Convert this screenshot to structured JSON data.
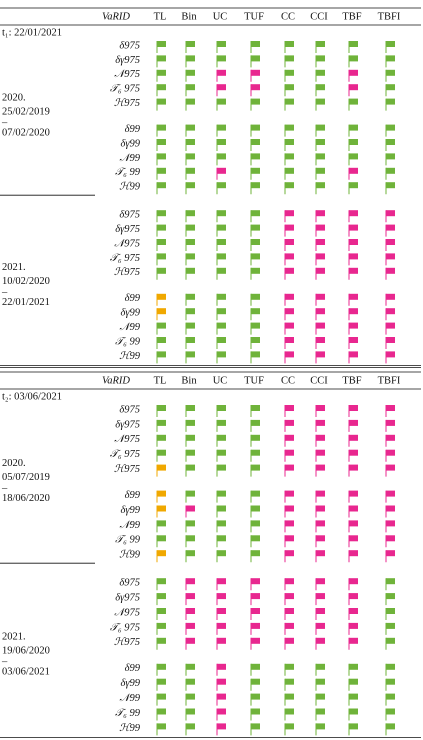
{
  "header": {
    "id_label": "VaRID",
    "columns": [
      "TL",
      "Bin",
      "UC",
      "TUF",
      "CC",
      "CCI",
      "TBF",
      "TBFI"
    ]
  },
  "sections": [
    {
      "date_label": "t₁: 22/01/2021",
      "periods": [
        {
          "year": "2020.",
          "start": "25/02/2019",
          "dash": "–",
          "end": "07/02/2020",
          "groups": [
            [
              {
                "label": "δ975",
                "flags": [
                  "#6fb33a",
                  "#6fb33a",
                  "#6fb33a",
                  "#6fb33a",
                  "#6fb33a",
                  "#6fb33a",
                  "#6fb33a",
                  "#6fb33a"
                ]
              },
              {
                "label": "δγ975",
                "flags": [
                  "#6fb33a",
                  "#6fb33a",
                  "#6fb33a",
                  "#6fb33a",
                  "#6fb33a",
                  "#6fb33a",
                  "#6fb33a",
                  "#6fb33a"
                ]
              },
              {
                "label": "𝒩975",
                "flags": [
                  "#6fb33a",
                  "#6fb33a",
                  "#e8278f",
                  "#e8278f",
                  "#6fb33a",
                  "#6fb33a",
                  "#e8278f",
                  "#6fb33a"
                ]
              },
              {
                "label": "𝒯₆ 975",
                "flags": [
                  "#6fb33a",
                  "#6fb33a",
                  "#e8278f",
                  "#e8278f",
                  "#6fb33a",
                  "#6fb33a",
                  "#e8278f",
                  "#6fb33a"
                ]
              },
              {
                "label": "ℋ975",
                "flags": [
                  "#6fb33a",
                  "#6fb33a",
                  "#6fb33a",
                  "#6fb33a",
                  "#6fb33a",
                  "#6fb33a",
                  "#6fb33a",
                  "#6fb33a"
                ]
              }
            ],
            [
              {
                "label": "δ99",
                "flags": [
                  "#6fb33a",
                  "#6fb33a",
                  "#6fb33a",
                  "#6fb33a",
                  "#6fb33a",
                  "#6fb33a",
                  "#6fb33a",
                  "#6fb33a"
                ]
              },
              {
                "label": "δγ99",
                "flags": [
                  "#6fb33a",
                  "#6fb33a",
                  "#6fb33a",
                  "#6fb33a",
                  "#6fb33a",
                  "#6fb33a",
                  "#6fb33a",
                  "#6fb33a"
                ]
              },
              {
                "label": "𝒩99",
                "flags": [
                  "#6fb33a",
                  "#6fb33a",
                  "#6fb33a",
                  "#6fb33a",
                  "#6fb33a",
                  "#6fb33a",
                  "#6fb33a",
                  "#6fb33a"
                ]
              },
              {
                "label": "𝒯₆ 99",
                "flags": [
                  "#6fb33a",
                  "#6fb33a",
                  "#e8278f",
                  "#6fb33a",
                  "#6fb33a",
                  "#6fb33a",
                  "#e8278f",
                  "#6fb33a"
                ]
              },
              {
                "label": "ℋ99",
                "flags": [
                  "#6fb33a",
                  "#6fb33a",
                  "#6fb33a",
                  "#6fb33a",
                  "#6fb33a",
                  "#6fb33a",
                  "#6fb33a",
                  "#6fb33a"
                ]
              }
            ]
          ]
        },
        {
          "year": "2021.",
          "start": "10/02/2020",
          "dash": "–",
          "end": "22/01/2021",
          "groups": [
            [
              {
                "label": "δ975",
                "flags": [
                  "#6fb33a",
                  "#6fb33a",
                  "#6fb33a",
                  "#6fb33a",
                  "#e8278f",
                  "#e8278f",
                  "#e8278f",
                  "#e8278f"
                ]
              },
              {
                "label": "δγ975",
                "flags": [
                  "#6fb33a",
                  "#6fb33a",
                  "#6fb33a",
                  "#6fb33a",
                  "#e8278f",
                  "#e8278f",
                  "#e8278f",
                  "#e8278f"
                ]
              },
              {
                "label": "𝒩975",
                "flags": [
                  "#6fb33a",
                  "#6fb33a",
                  "#6fb33a",
                  "#6fb33a",
                  "#e8278f",
                  "#e8278f",
                  "#e8278f",
                  "#e8278f"
                ]
              },
              {
                "label": "𝒯₆ 975",
                "flags": [
                  "#6fb33a",
                  "#6fb33a",
                  "#6fb33a",
                  "#6fb33a",
                  "#e8278f",
                  "#e8278f",
                  "#e8278f",
                  "#e8278f"
                ]
              },
              {
                "label": "ℋ975",
                "flags": [
                  "#6fb33a",
                  "#6fb33a",
                  "#6fb33a",
                  "#6fb33a",
                  "#e8278f",
                  "#e8278f",
                  "#e8278f",
                  "#e8278f"
                ]
              }
            ],
            [
              {
                "label": "δ99",
                "flags": [
                  "#f0a800",
                  "#6fb33a",
                  "#6fb33a",
                  "#6fb33a",
                  "#e8278f",
                  "#e8278f",
                  "#e8278f",
                  "#e8278f"
                ]
              },
              {
                "label": "δγ99",
                "flags": [
                  "#f0a800",
                  "#6fb33a",
                  "#6fb33a",
                  "#6fb33a",
                  "#e8278f",
                  "#e8278f",
                  "#e8278f",
                  "#e8278f"
                ]
              },
              {
                "label": "𝒩99",
                "flags": [
                  "#6fb33a",
                  "#6fb33a",
                  "#6fb33a",
                  "#6fb33a",
                  "#e8278f",
                  "#e8278f",
                  "#e8278f",
                  "#e8278f"
                ]
              },
              {
                "label": "𝒯₆ 99",
                "flags": [
                  "#6fb33a",
                  "#6fb33a",
                  "#6fb33a",
                  "#6fb33a",
                  "#e8278f",
                  "#e8278f",
                  "#e8278f",
                  "#e8278f"
                ]
              },
              {
                "label": "ℋ99",
                "flags": [
                  "#6fb33a",
                  "#6fb33a",
                  "#6fb33a",
                  "#6fb33a",
                  "#e8278f",
                  "#e8278f",
                  "#e8278f",
                  "#e8278f"
                ]
              }
            ]
          ]
        }
      ]
    },
    {
      "date_label": "t₂: 03/06/2021",
      "periods": [
        {
          "year": "2020.",
          "start": "05/07/2019",
          "dash": "–",
          "end": "18/06/2020",
          "groups": [
            [
              {
                "label": "δ975",
                "flags": [
                  "#6fb33a",
                  "#6fb33a",
                  "#6fb33a",
                  "#6fb33a",
                  "#e8278f",
                  "#e8278f",
                  "#e8278f",
                  "#e8278f"
                ]
              },
              {
                "label": "δγ975",
                "flags": [
                  "#6fb33a",
                  "#6fb33a",
                  "#6fb33a",
                  "#6fb33a",
                  "#e8278f",
                  "#e8278f",
                  "#e8278f",
                  "#e8278f"
                ]
              },
              {
                "label": "𝒩975",
                "flags": [
                  "#6fb33a",
                  "#6fb33a",
                  "#6fb33a",
                  "#6fb33a",
                  "#e8278f",
                  "#e8278f",
                  "#e8278f",
                  "#e8278f"
                ]
              },
              {
                "label": "𝒯₆ 975",
                "flags": [
                  "#6fb33a",
                  "#6fb33a",
                  "#6fb33a",
                  "#6fb33a",
                  "#e8278f",
                  "#e8278f",
                  "#e8278f",
                  "#e8278f"
                ]
              },
              {
                "label": "ℋ975",
                "flags": [
                  "#f0a800",
                  "#6fb33a",
                  "#6fb33a",
                  "#6fb33a",
                  "#e8278f",
                  "#e8278f",
                  "#e8278f",
                  "#e8278f"
                ]
              }
            ],
            [
              {
                "label": "δ99",
                "flags": [
                  "#f0a800",
                  "#6fb33a",
                  "#6fb33a",
                  "#6fb33a",
                  "#e8278f",
                  "#e8278f",
                  "#e8278f",
                  "#e8278f"
                ]
              },
              {
                "label": "δγ99",
                "flags": [
                  "#f0a800",
                  "#e8278f",
                  "#6fb33a",
                  "#6fb33a",
                  "#e8278f",
                  "#e8278f",
                  "#e8278f",
                  "#e8278f"
                ]
              },
              {
                "label": "𝒩99",
                "flags": [
                  "#6fb33a",
                  "#6fb33a",
                  "#6fb33a",
                  "#6fb33a",
                  "#e8278f",
                  "#e8278f",
                  "#e8278f",
                  "#e8278f"
                ]
              },
              {
                "label": "𝒯₆ 99",
                "flags": [
                  "#6fb33a",
                  "#6fb33a",
                  "#6fb33a",
                  "#6fb33a",
                  "#e8278f",
                  "#e8278f",
                  "#e8278f",
                  "#e8278f"
                ]
              },
              {
                "label": "ℋ99",
                "flags": [
                  "#f0a800",
                  "#6fb33a",
                  "#6fb33a",
                  "#6fb33a",
                  "#e8278f",
                  "#e8278f",
                  "#e8278f",
                  "#e8278f"
                ]
              }
            ]
          ]
        },
        {
          "year": "2021.",
          "start": "19/06/2020",
          "dash": "–",
          "end": "03/06/2021",
          "groups": [
            [
              {
                "label": "δ975",
                "flags": [
                  "#6fb33a",
                  "#e8278f",
                  "#e8278f",
                  "#e8278f",
                  "#e8278f",
                  "#e8278f",
                  "#e8278f",
                  "#6fb33a"
                ]
              },
              {
                "label": "δγ975",
                "flags": [
                  "#6fb33a",
                  "#e8278f",
                  "#e8278f",
                  "#e8278f",
                  "#e8278f",
                  "#e8278f",
                  "#e8278f",
                  "#6fb33a"
                ]
              },
              {
                "label": "𝒩975",
                "flags": [
                  "#6fb33a",
                  "#e8278f",
                  "#e8278f",
                  "#e8278f",
                  "#e8278f",
                  "#e8278f",
                  "#e8278f",
                  "#6fb33a"
                ]
              },
              {
                "label": "𝒯₆ 975",
                "flags": [
                  "#6fb33a",
                  "#e8278f",
                  "#e8278f",
                  "#e8278f",
                  "#e8278f",
                  "#e8278f",
                  "#e8278f",
                  "#6fb33a"
                ]
              },
              {
                "label": "ℋ975",
                "flags": [
                  "#6fb33a",
                  "#e8278f",
                  "#e8278f",
                  "#e8278f",
                  "#e8278f",
                  "#e8278f",
                  "#e8278f",
                  "#6fb33a"
                ]
              }
            ],
            [
              {
                "label": "δ99",
                "flags": [
                  "#6fb33a",
                  "#6fb33a",
                  "#e8278f",
                  "#6fb33a",
                  "#6fb33a",
                  "#6fb33a",
                  "#6fb33a",
                  "#6fb33a"
                ]
              },
              {
                "label": "δγ99",
                "flags": [
                  "#6fb33a",
                  "#6fb33a",
                  "#e8278f",
                  "#6fb33a",
                  "#6fb33a",
                  "#6fb33a",
                  "#6fb33a",
                  "#6fb33a"
                ]
              },
              {
                "label": "𝒩99",
                "flags": [
                  "#6fb33a",
                  "#6fb33a",
                  "#e8278f",
                  "#6fb33a",
                  "#6fb33a",
                  "#6fb33a",
                  "#6fb33a",
                  "#6fb33a"
                ]
              },
              {
                "label": "𝒯₆ 99",
                "flags": [
                  "#6fb33a",
                  "#6fb33a",
                  "#e8278f",
                  "#6fb33a",
                  "#6fb33a",
                  "#6fb33a",
                  "#6fb33a",
                  "#6fb33a"
                ]
              },
              {
                "label": "ℋ99",
                "flags": [
                  "#6fb33a",
                  "#6fb33a",
                  "#e8278f",
                  "#6fb33a",
                  "#6fb33a",
                  "#6fb33a",
                  "#6fb33a",
                  "#6fb33a"
                ]
              }
            ]
          ]
        }
      ]
    }
  ]
}
